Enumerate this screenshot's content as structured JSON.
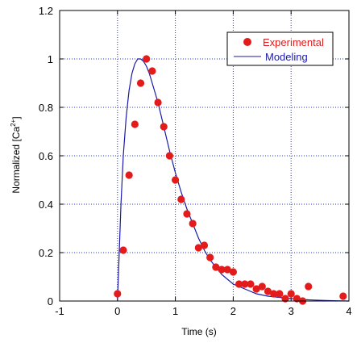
{
  "chart_data": {
    "type": "scatter",
    "xlabel": "Time (s)",
    "ylabel_parts": {
      "base": "Normalized [Ca",
      "sup": "2+",
      "end": "]"
    },
    "xlim": [
      -1,
      4
    ],
    "ylim": [
      0,
      1.2
    ],
    "x_ticks": [
      "-1",
      "0",
      "1",
      "2",
      "3",
      "4"
    ],
    "y_ticks": [
      "0",
      "0.2",
      "0.4",
      "0.6",
      "0.8",
      "1",
      "1.2"
    ],
    "grid": true,
    "legend_position": "top-right",
    "series": [
      {
        "name": "Experimental",
        "kind": "points",
        "color": "#e31b1b",
        "x": [
          0.0,
          0.1,
          0.2,
          0.3,
          0.4,
          0.5,
          0.6,
          0.7,
          0.8,
          0.9,
          1.0,
          1.1,
          1.2,
          1.3,
          1.4,
          1.5,
          1.6,
          1.7,
          1.8,
          1.9,
          2.0,
          2.1,
          2.2,
          2.3,
          2.4,
          2.5,
          2.6,
          2.7,
          2.8,
          2.9,
          3.0,
          3.1,
          3.2,
          3.3,
          3.9
        ],
        "y": [
          0.03,
          0.21,
          0.52,
          0.73,
          0.9,
          1.0,
          0.95,
          0.82,
          0.72,
          0.6,
          0.5,
          0.42,
          0.36,
          0.32,
          0.22,
          0.23,
          0.18,
          0.14,
          0.13,
          0.13,
          0.12,
          0.07,
          0.07,
          0.07,
          0.05,
          0.06,
          0.04,
          0.03,
          0.03,
          0.01,
          0.03,
          0.01,
          0.0,
          0.06,
          0.02
        ]
      },
      {
        "name": "Modeling",
        "kind": "line",
        "color": "#1a1aa6",
        "x": [
          0.0,
          0.03,
          0.06,
          0.1,
          0.15,
          0.2,
          0.25,
          0.3,
          0.35,
          0.4,
          0.45,
          0.5,
          0.55,
          0.6,
          0.7,
          0.8,
          0.9,
          1.0,
          1.1,
          1.2,
          1.3,
          1.4,
          1.5,
          1.6,
          1.7,
          1.8,
          1.9,
          2.0,
          2.2,
          2.4,
          2.6,
          2.8,
          3.0,
          3.2,
          3.4,
          3.6,
          3.8,
          4.0
        ],
        "y": [
          0.0,
          0.2,
          0.4,
          0.6,
          0.76,
          0.87,
          0.94,
          0.98,
          1.0,
          1.0,
          0.99,
          0.97,
          0.94,
          0.9,
          0.82,
          0.72,
          0.62,
          0.53,
          0.45,
          0.38,
          0.32,
          0.26,
          0.21,
          0.17,
          0.14,
          0.11,
          0.09,
          0.07,
          0.05,
          0.03,
          0.02,
          0.015,
          0.01,
          0.006,
          0.004,
          0.002,
          0.001,
          0.0
        ]
      }
    ]
  }
}
